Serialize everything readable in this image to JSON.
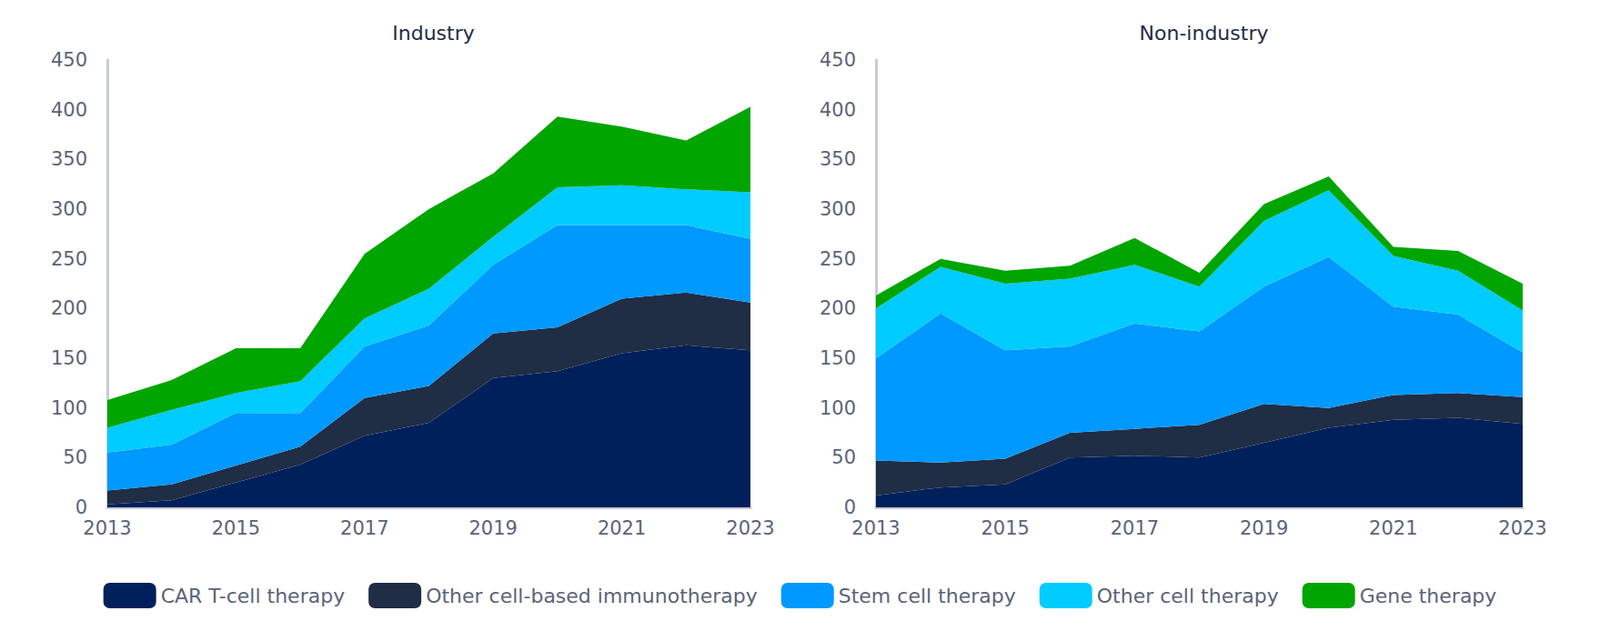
{
  "chart_data": [
    {
      "type": "area",
      "title": "Industry",
      "categories": [
        "2013",
        null,
        "2015",
        null,
        "2017",
        null,
        "2019",
        null,
        "2021",
        null,
        "2023"
      ],
      "stacked": true,
      "grid": false,
      "legend": "bottom",
      "ylim": [
        0,
        450
      ],
      "yticks": [
        0,
        50,
        100,
        150,
        200,
        250,
        300,
        350,
        400,
        450
      ],
      "series": [
        {
          "name": "CAR T-cell therapy",
          "color": "#00205b",
          "values": [
            3,
            7,
            25,
            43,
            72,
            85,
            130,
            137,
            155,
            163,
            158
          ]
        },
        {
          "name": "Other cell-based immunotherapy",
          "color": "#1f2d45",
          "values": [
            14,
            16,
            17,
            18,
            38,
            37,
            45,
            44,
            55,
            53,
            48
          ]
        },
        {
          "name": "Stem cell therapy",
          "color": "#0099ff",
          "values": [
            38,
            40,
            53,
            34,
            52,
            61,
            69,
            103,
            74,
            68,
            64
          ]
        },
        {
          "name": "Other cell therapy",
          "color": "#00ccff",
          "values": [
            25,
            35,
            20,
            32,
            28,
            37,
            28,
            38,
            40,
            36,
            47
          ]
        },
        {
          "name": "Gene therapy",
          "color": "#00a500",
          "values": [
            28,
            30,
            45,
            33,
            65,
            80,
            64,
            71,
            59,
            49,
            86
          ]
        }
      ]
    },
    {
      "type": "area",
      "title": "Non-industry",
      "categories": [
        "2013",
        null,
        "2015",
        null,
        "2017",
        null,
        "2019",
        null,
        "2021",
        null,
        "2023"
      ],
      "stacked": true,
      "grid": false,
      "legend": "bottom",
      "ylim": [
        0,
        450
      ],
      "yticks": [
        0,
        50,
        100,
        150,
        200,
        250,
        300,
        350,
        400,
        450
      ],
      "series": [
        {
          "name": "CAR T-cell therapy",
          "color": "#00205b",
          "values": [
            12,
            20,
            23,
            50,
            52,
            50,
            65,
            80,
            88,
            90,
            84
          ]
        },
        {
          "name": "Other cell-based immunotherapy",
          "color": "#1f2d45",
          "values": [
            35,
            25,
            26,
            25,
            27,
            33,
            39,
            20,
            25,
            25,
            27
          ]
        },
        {
          "name": "Stem cell therapy",
          "color": "#0099ff",
          "values": [
            103,
            150,
            109,
            87,
            106,
            94,
            118,
            152,
            89,
            79,
            45
          ]
        },
        {
          "name": "Other cell therapy",
          "color": "#00ccff",
          "values": [
            50,
            47,
            67,
            68,
            59,
            45,
            66,
            67,
            51,
            44,
            42
          ]
        },
        {
          "name": "Gene therapy",
          "color": "#00a500",
          "values": [
            13,
            8,
            13,
            13,
            27,
            14,
            17,
            14,
            9,
            20,
            27
          ]
        }
      ]
    }
  ]
}
